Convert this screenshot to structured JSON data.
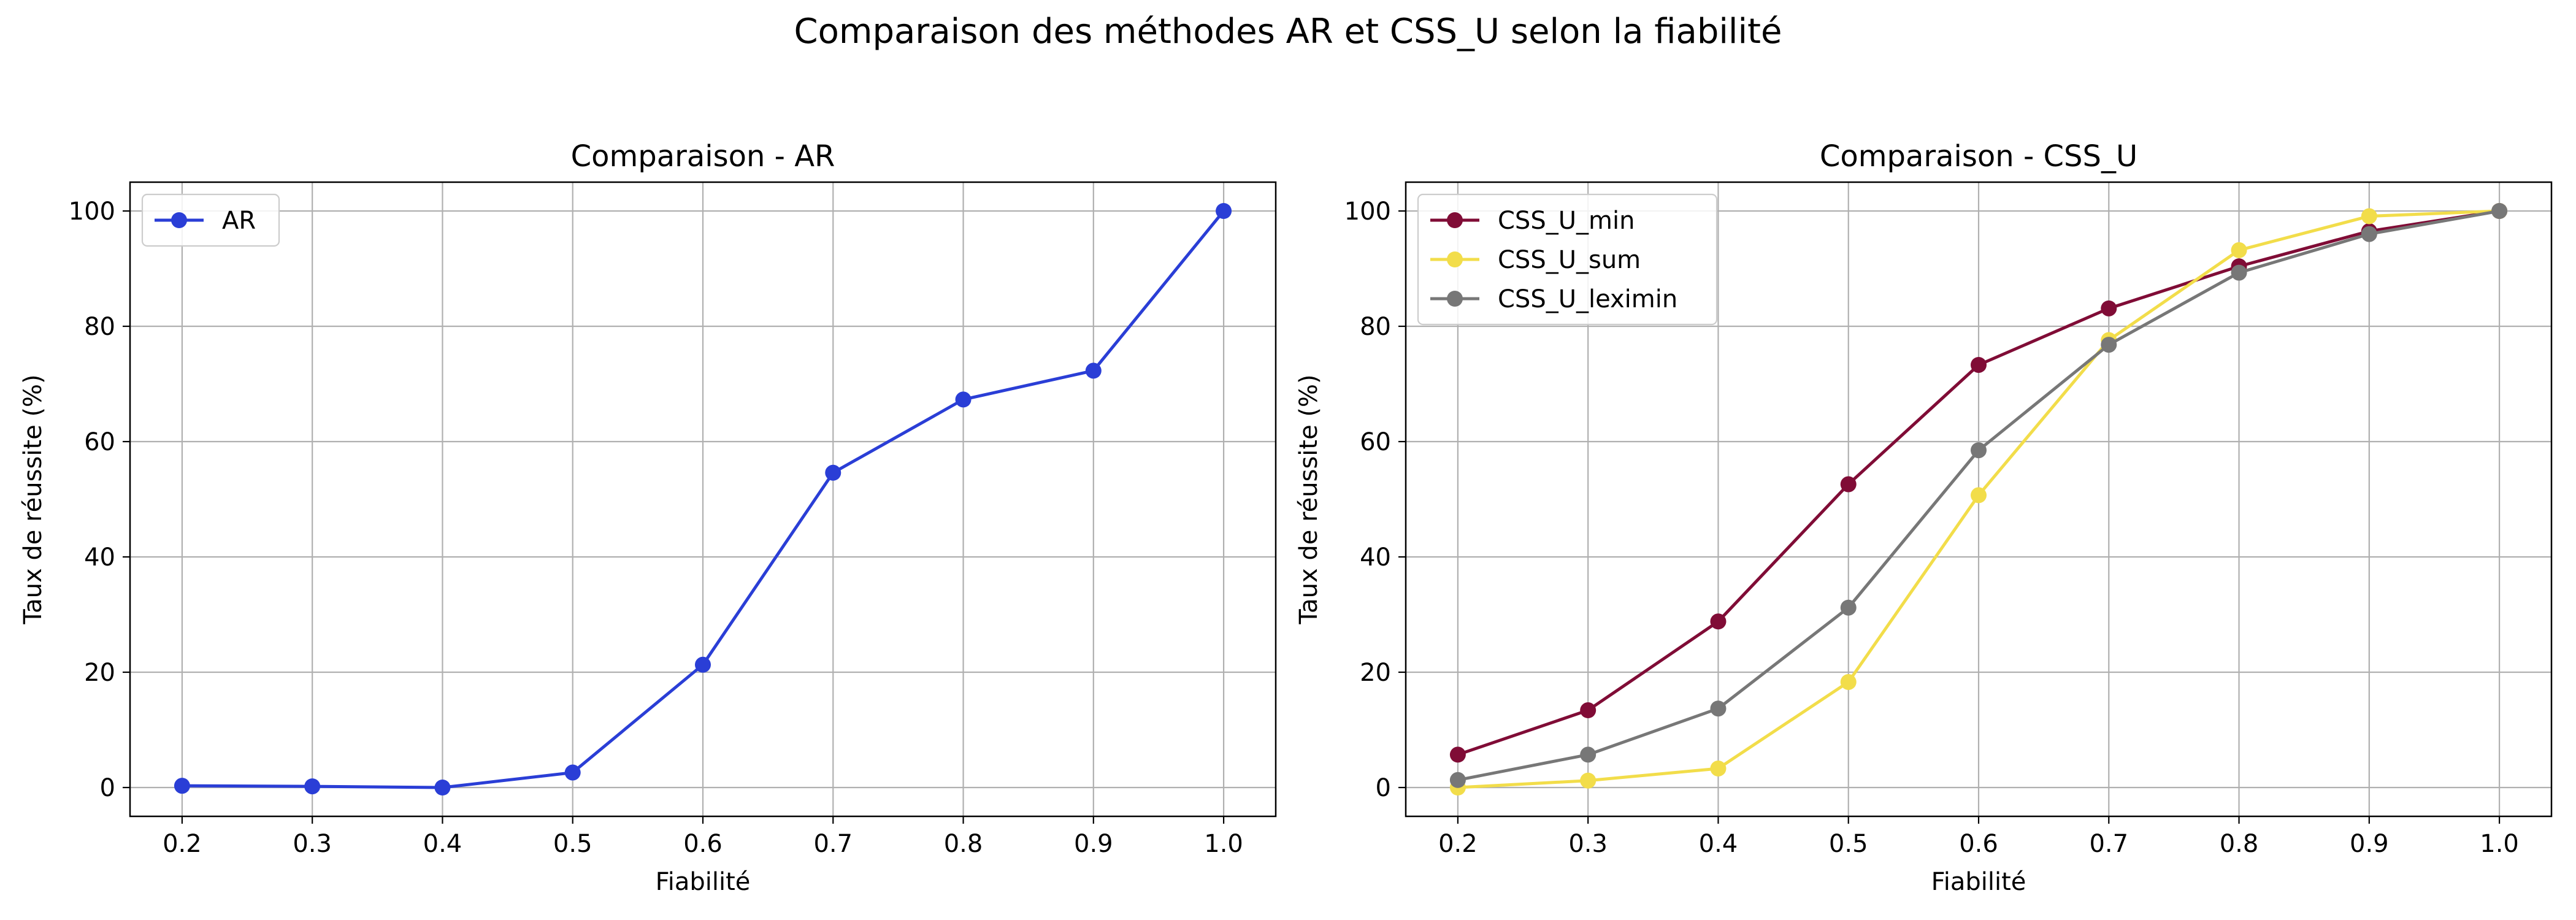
{
  "figure": {
    "title": "Comparaison des méthodes AR et CSS_U selon la fiabilité"
  },
  "chart_data": [
    {
      "type": "line",
      "title": "Comparaison - AR",
      "xlabel": "Fiabilité",
      "ylabel": "Taux de réussite (%)",
      "xlim": [
        0.16,
        1.04
      ],
      "ylim": [
        -5,
        105
      ],
      "x_ticks": [
        0.2,
        0.3,
        0.4,
        0.5,
        0.6,
        0.7,
        0.8,
        0.9,
        1.0
      ],
      "y_ticks": [
        0,
        20,
        40,
        60,
        80,
        100
      ],
      "grid": true,
      "legend": "top-left",
      "x": [
        0.2,
        0.3,
        0.4,
        0.5,
        0.6,
        0.7,
        0.8,
        0.9,
        1.0
      ],
      "series": [
        {
          "name": "AR",
          "color": "#2a3ed6",
          "values": [
            0.3,
            0.2,
            0.0,
            2.6,
            21.3,
            54.6,
            67.3,
            72.3,
            100.0
          ]
        }
      ]
    },
    {
      "type": "line",
      "title": "Comparaison - CSS_U",
      "xlabel": "Fiabilité",
      "ylabel": "Taux de réussite (%)",
      "xlim": [
        0.16,
        1.04
      ],
      "ylim": [
        -5,
        105
      ],
      "x_ticks": [
        0.2,
        0.3,
        0.4,
        0.5,
        0.6,
        0.7,
        0.8,
        0.9,
        1.0
      ],
      "y_ticks": [
        0,
        20,
        40,
        60,
        80,
        100
      ],
      "grid": true,
      "legend": "top-left",
      "x": [
        0.2,
        0.3,
        0.4,
        0.5,
        0.6,
        0.7,
        0.8,
        0.9,
        1.0
      ],
      "series": [
        {
          "name": "CSS_U_min",
          "color": "#800c36",
          "values": [
            5.7,
            13.4,
            28.8,
            52.6,
            73.3,
            83.1,
            90.4,
            96.5,
            100.0
          ]
        },
        {
          "name": "CSS_U_sum",
          "color": "#f2dd4a",
          "values": [
            0.0,
            1.2,
            3.3,
            18.3,
            50.7,
            77.6,
            93.2,
            99.1,
            100.0
          ]
        },
        {
          "name": "CSS_U_leximin",
          "color": "#777777",
          "values": [
            1.3,
            5.7,
            13.7,
            31.2,
            58.5,
            76.8,
            89.3,
            96.0,
            100.0
          ]
        }
      ]
    }
  ]
}
